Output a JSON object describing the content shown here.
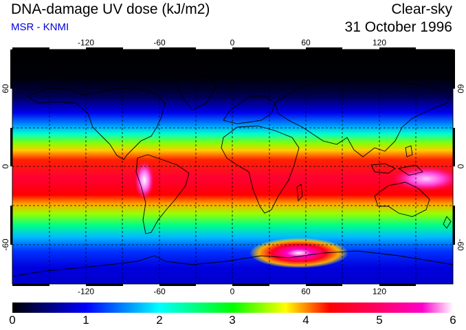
{
  "header": {
    "title": "DNA-damage UV dose (kJ/m2)",
    "source": "MSR - KNMI",
    "condition": "Clear-sky",
    "date": "31 October 1996"
  },
  "map": {
    "projection": "equirectangular",
    "lon_ticks": [
      "-120",
      "-60",
      "0",
      "60",
      "120"
    ],
    "lat_ticks": [
      "60",
      "0",
      "-60"
    ],
    "grid": "dashed 30-degree graticule",
    "features": [
      "coastlines",
      "UV dose field"
    ]
  },
  "colorbar": {
    "labels": [
      "0",
      "1",
      "2",
      "3",
      "4",
      "5",
      "6"
    ],
    "colors": [
      "#000000",
      "#0000ff",
      "#00ffff",
      "#00ff00",
      "#ffff00",
      "#ff0000",
      "#ff00aa",
      "#ffffff"
    ]
  }
}
